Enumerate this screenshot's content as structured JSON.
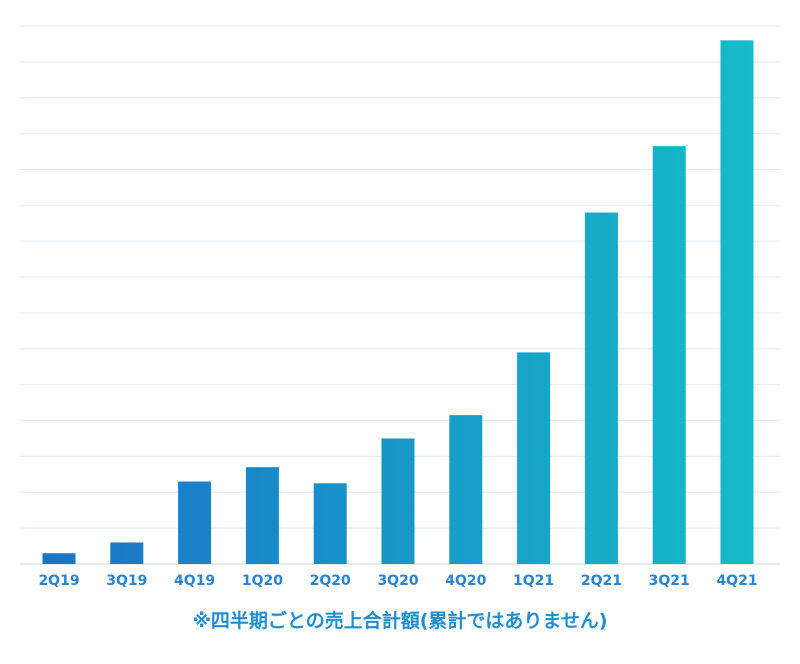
{
  "chart_data": {
    "type": "bar",
    "categories": [
      "2Q19",
      "3Q19",
      "4Q19",
      "1Q20",
      "2Q20",
      "3Q20",
      "4Q20",
      "1Q21",
      "2Q21",
      "3Q21",
      "4Q21"
    ],
    "values": [
      3,
      6,
      23,
      27,
      22.5,
      35,
      41.5,
      59,
      98,
      116.5,
      146
    ],
    "ylim": [
      0,
      150
    ],
    "grid": true,
    "bar_color_start": "#1b72c8",
    "bar_color_end": "#15bcc8",
    "label_color": "#2b84cf",
    "note": "※四半期ごとの売上合計額(累計ではありません)"
  }
}
